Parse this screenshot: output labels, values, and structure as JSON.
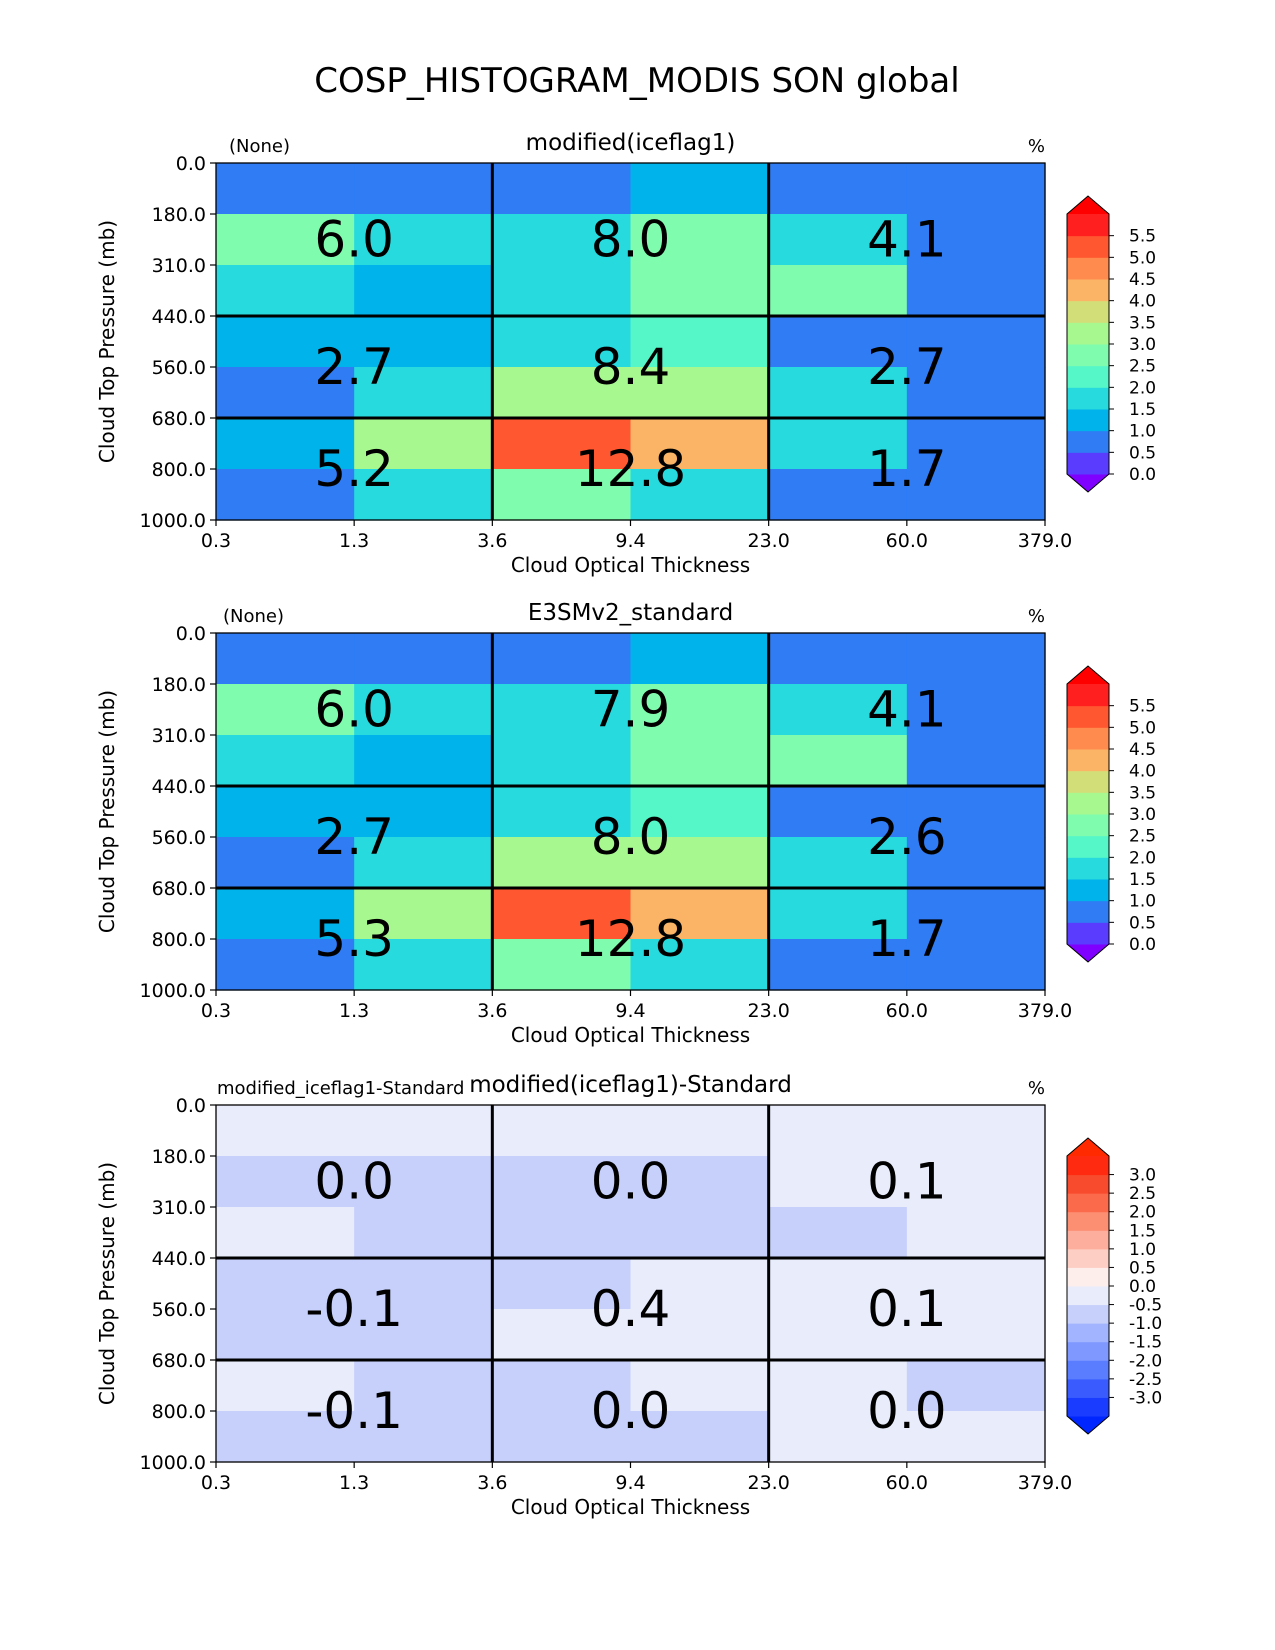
{
  "figure": {
    "title": "COSP_HISTOGRAM_MODIS SON global"
  },
  "chart_data": [
    {
      "type": "heatmap",
      "title": "modified(iceflag1)",
      "left_label": "(None)",
      "units_label": "%",
      "xlabel": "Cloud Optical Thickness",
      "ylabel": "Cloud Top Pressure (mb)",
      "x_ticks": [
        "0.3",
        "1.3",
        "3.6",
        "9.4",
        "23.0",
        "60.0",
        "379.0"
      ],
      "y_ticks": [
        "0.0",
        "180.0",
        "310.0",
        "440.0",
        "560.0",
        "680.0",
        "800.0",
        "1000.0"
      ],
      "cells": [
        [
          0.1,
          0.1,
          0.3,
          0.7,
          0.1,
          0.1
        ],
        [
          2.2,
          1.4,
          1.3,
          2.3,
          1.4,
          0.1
        ],
        [
          1.3,
          0.7,
          1.3,
          2.3,
          2.3,
          0.1
        ],
        [
          0.7,
          0.7,
          1.3,
          1.8,
          0.1,
          0.1
        ],
        [
          0.1,
          1.3,
          2.6,
          2.6,
          1.4,
          0.1
        ],
        [
          0.7,
          2.6,
          4.9,
          3.9,
          1.4,
          0.1
        ],
        [
          0.1,
          1.3,
          2.0,
          1.3,
          0.1,
          0.1
        ]
      ],
      "block_totals": [
        [
          "6.0",
          "8.0",
          "4.1"
        ],
        [
          "2.7",
          "8.4",
          "2.7"
        ],
        [
          "5.2",
          "12.8",
          "1.7"
        ]
      ],
      "colorbar": {
        "levels": [
          -0.5,
          0.0,
          0.5,
          1.0,
          1.5,
          2.0,
          2.5,
          3.0,
          3.5,
          4.0,
          4.5,
          5.0,
          5.5,
          6.0
        ],
        "colors": [
          "#5a3cff",
          "#2f7cf5",
          "#00b3ea",
          "#26dade",
          "#55f6c8",
          "#80fcae",
          "#a8f890",
          "#d2df78",
          "#fbb466",
          "#ff8c4e",
          "#ff5830",
          "#ff1f1f"
        ],
        "under_color": "#7f00ff",
        "over_color": "#ff0000",
        "tick_labels": [
          "5.5",
          "5.0",
          "4.5",
          "4.0",
          "3.5",
          "3.0",
          "2.5",
          "2.0",
          "1.5",
          "1.0",
          "0.5",
          "0.0"
        ]
      }
    },
    {
      "type": "heatmap",
      "title": "E3SMv2_standard",
      "left_label": "(None)",
      "units_label": "%",
      "xlabel": "Cloud Optical Thickness",
      "ylabel": "Cloud Top Pressure (mb)",
      "x_ticks": [
        "0.3",
        "1.3",
        "3.6",
        "9.4",
        "23.0",
        "60.0",
        "379.0"
      ],
      "y_ticks": [
        "0.0",
        "180.0",
        "310.0",
        "440.0",
        "560.0",
        "680.0",
        "800.0",
        "1000.0"
      ],
      "cells": [
        [
          0.1,
          0.1,
          0.3,
          0.7,
          0.1,
          0.1
        ],
        [
          2.2,
          1.4,
          1.3,
          2.3,
          1.4,
          0.1
        ],
        [
          1.3,
          0.7,
          1.3,
          2.3,
          2.3,
          0.1
        ],
        [
          0.7,
          0.7,
          1.3,
          1.8,
          0.1,
          0.1
        ],
        [
          0.1,
          1.3,
          2.6,
          2.6,
          1.4,
          0.1
        ],
        [
          0.7,
          2.6,
          4.9,
          3.9,
          1.4,
          0.1
        ],
        [
          0.1,
          1.3,
          2.0,
          1.3,
          0.1,
          0.1
        ]
      ],
      "block_totals": [
        [
          "6.0",
          "7.9",
          "4.1"
        ],
        [
          "2.7",
          "8.0",
          "2.6"
        ],
        [
          "5.3",
          "12.8",
          "1.7"
        ]
      ],
      "colorbar": {
        "levels": [
          -0.5,
          0.0,
          0.5,
          1.0,
          1.5,
          2.0,
          2.5,
          3.0,
          3.5,
          4.0,
          4.5,
          5.0,
          5.5,
          6.0
        ],
        "colors": [
          "#5a3cff",
          "#2f7cf5",
          "#00b3ea",
          "#26dade",
          "#55f6c8",
          "#80fcae",
          "#a8f890",
          "#d2df78",
          "#fbb466",
          "#ff8c4e",
          "#ff5830",
          "#ff1f1f"
        ],
        "under_color": "#7f00ff",
        "over_color": "#ff0000",
        "tick_labels": [
          "5.5",
          "5.0",
          "4.5",
          "4.0",
          "3.5",
          "3.0",
          "2.5",
          "2.0",
          "1.5",
          "1.0",
          "0.5",
          "0.0"
        ]
      }
    },
    {
      "type": "heatmap",
      "title": "modified(iceflag1)-Standard",
      "left_label": "modified_iceflag1-Standard",
      "units_label": "%",
      "xlabel": "Cloud Optical Thickness",
      "ylabel": "Cloud Top Pressure (mb)",
      "x_ticks": [
        "0.3",
        "1.3",
        "3.6",
        "9.4",
        "23.0",
        "60.0",
        "379.0"
      ],
      "y_ticks": [
        "0.0",
        "180.0",
        "310.0",
        "440.0",
        "560.0",
        "680.0",
        "800.0",
        "1000.0"
      ],
      "cells": [
        [
          0.1,
          0.1,
          0.1,
          0.1,
          0.1,
          0.1
        ],
        [
          -0.1,
          -0.1,
          -0.1,
          -0.1,
          0.1,
          0.1
        ],
        [
          0.1,
          -0.1,
          -0.1,
          -0.1,
          -0.1,
          0.1
        ],
        [
          -0.1,
          -0.1,
          -0.1,
          0.1,
          0.1,
          0.1
        ],
        [
          -0.1,
          -0.1,
          0.1,
          0.1,
          0.1,
          0.1
        ],
        [
          0.1,
          -0.1,
          -0.1,
          0.1,
          0.1,
          -0.1
        ],
        [
          -0.1,
          -0.1,
          -0.1,
          -0.1,
          0.1,
          0.1
        ]
      ],
      "block_totals": [
        [
          "0.0",
          "0.0",
          "0.1"
        ],
        [
          "-0.1",
          "0.4",
          "0.1"
        ],
        [
          "-0.1",
          "0.0",
          "0.0"
        ]
      ],
      "colorbar": {
        "levels": [
          -3.0,
          -2.5,
          -2.0,
          -1.5,
          -1.0,
          -0.5,
          0.0,
          0.5,
          1.0,
          1.5,
          2.0,
          2.5,
          3.0
        ],
        "colors": [
          "#1a3cff",
          "#3a5cff",
          "#5a7cff",
          "#7e98ff",
          "#a2b4ff",
          "#c6d0fb",
          "#e8ecfb",
          "#fdeeec",
          "#fdcfc4",
          "#fdae9c",
          "#fc8e72",
          "#fb6a4a",
          "#f84a2c",
          "#ff2a10"
        ],
        "under_color": "#0026ff",
        "over_color": "#ff2a00",
        "tick_labels": [
          "3.0",
          "2.5",
          "2.0",
          "1.5",
          "1.0",
          "0.5",
          "0.0",
          "-0.5",
          "-1.0",
          "-1.5",
          "-2.0",
          "-2.5",
          "-3.0"
        ]
      }
    }
  ]
}
